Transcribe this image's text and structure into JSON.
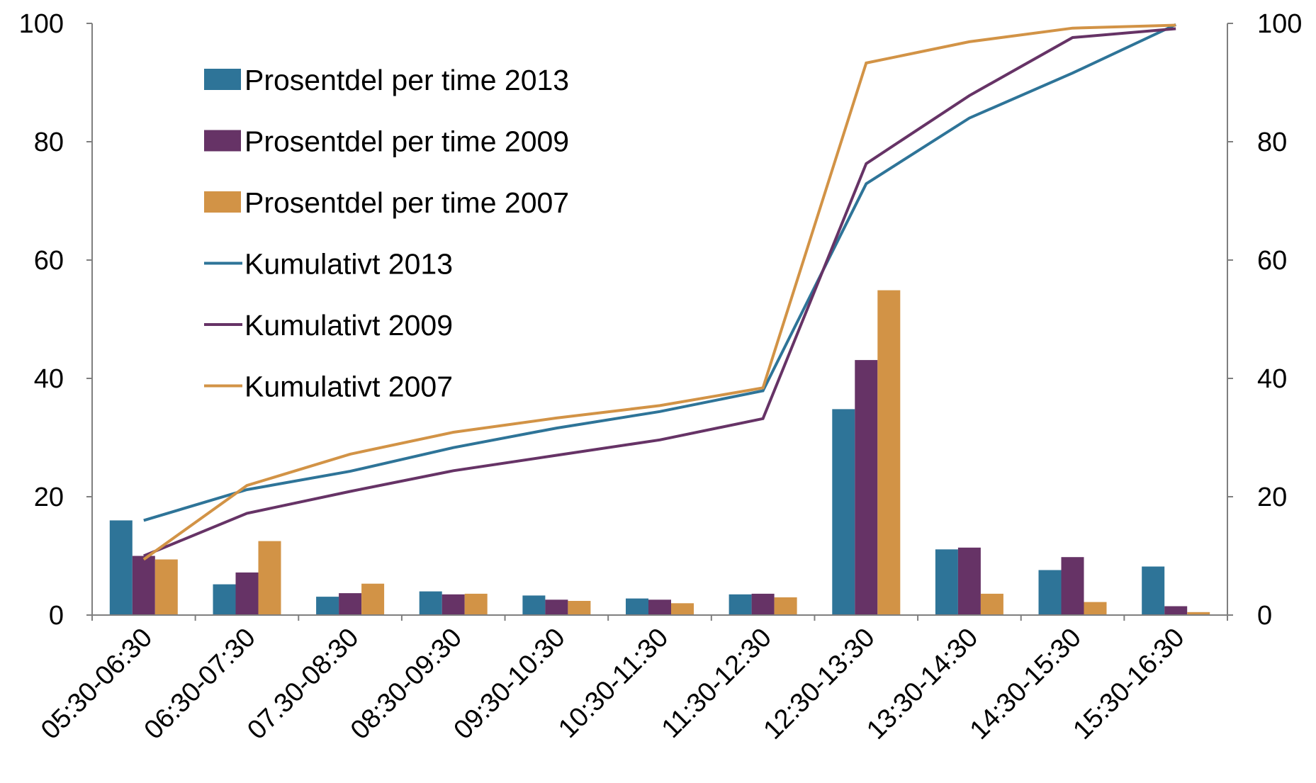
{
  "chart_data": {
    "type": "bar",
    "title": "",
    "xlabel": "",
    "ylabel": "",
    "ylim": [
      0,
      100
    ],
    "y2lim": [
      0,
      100
    ],
    "yticks": [
      "0",
      "20",
      "40",
      "60",
      "80",
      "100"
    ],
    "y2ticks": [
      "0",
      "20",
      "40",
      "60",
      "80",
      "100"
    ],
    "grid": false,
    "legend_position": "top-left",
    "categories": [
      "05:30-06:30",
      "06:30-07:30",
      "07.30-08:30",
      "08:30-09:30",
      "09:30-10:30",
      "10:30-11:30",
      "11:30-12:30",
      "12:30-13:30",
      "13:30-14:30",
      "14:30-15:30",
      "15:30-16:30"
    ],
    "bar_series": [
      {
        "name": "Prosentdel per time 2013",
        "color": "#2E7498",
        "values": [
          16,
          5.2,
          3.1,
          4.0,
          3.3,
          2.8,
          3.5,
          34.8,
          11.1,
          7.6,
          8.2
        ]
      },
      {
        "name": "Prosentdel per time 2009",
        "color": "#663366",
        "values": [
          10,
          7.2,
          3.7,
          3.5,
          2.6,
          2.6,
          3.6,
          43.1,
          11.4,
          9.8,
          1.5
        ]
      },
      {
        "name": "Prosentdel per time 2007",
        "color": "#D29346",
        "values": [
          9.4,
          12.5,
          5.3,
          3.6,
          2.4,
          2.0,
          3.0,
          54.9,
          3.6,
          2.2,
          0.5
        ]
      }
    ],
    "line_series": [
      {
        "name": "Kumulativt 2013",
        "color": "#2E7498",
        "values": [
          16,
          21.2,
          24.3,
          28.3,
          31.6,
          34.4,
          37.9,
          72.9,
          84.0,
          91.6,
          99.8
        ]
      },
      {
        "name": "Kumulativt 2009",
        "color": "#663366",
        "values": [
          10,
          17.2,
          20.9,
          24.4,
          27.0,
          29.6,
          33.2,
          76.3,
          87.8,
          97.6,
          99.1
        ]
      },
      {
        "name": "Kumulativt 2007",
        "color": "#D29346",
        "values": [
          9.4,
          21.9,
          27.2,
          30.9,
          33.3,
          35.4,
          38.4,
          93.3,
          96.9,
          99.2,
          99.7
        ]
      }
    ]
  }
}
